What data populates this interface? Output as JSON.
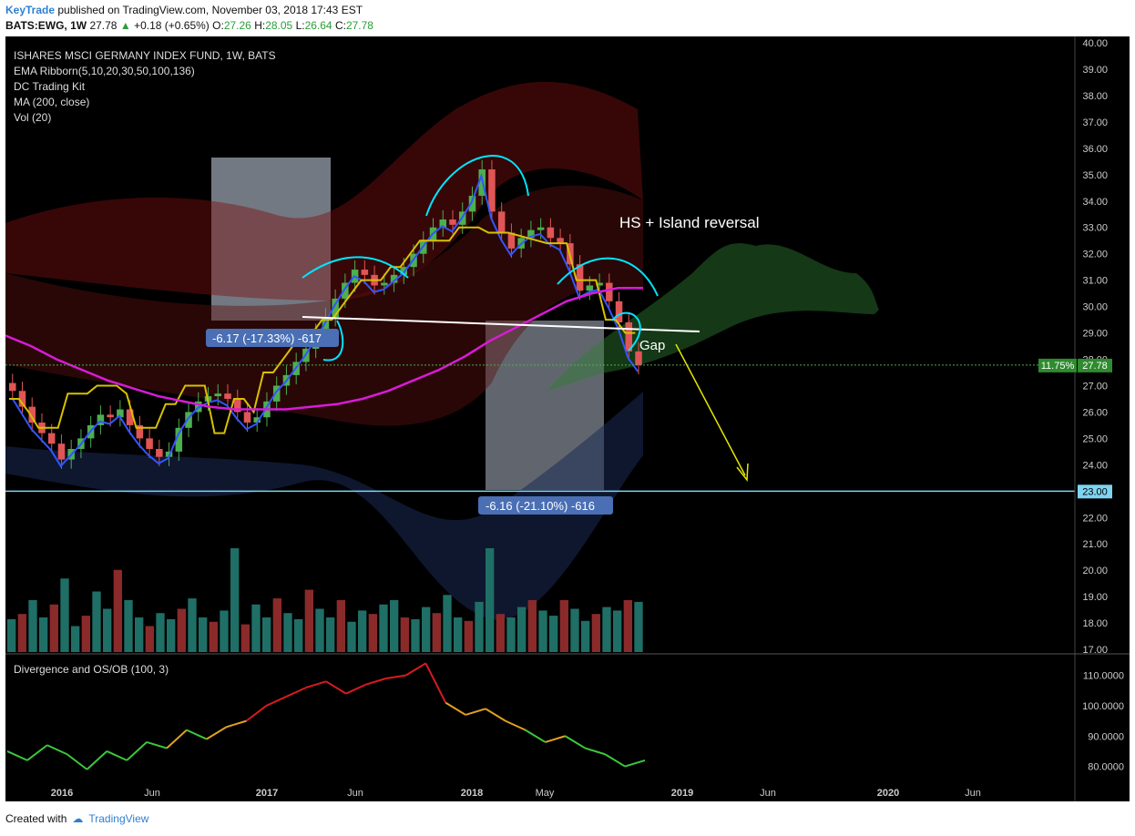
{
  "header": {
    "brand": "KeyTrade",
    "published": "published on TradingView.com, November 03, 2018 17:43 EST",
    "symbol": "BATS:EWG, 1W",
    "last": "27.78",
    "change": "+0.18 (+0.65%)",
    "o_label": "O:",
    "o": "27.26",
    "h_label": "H:",
    "h": "28.05",
    "l_label": "L:",
    "l": "26.64",
    "c_label": "C:",
    "c": "27.78"
  },
  "legend": [
    "ISHARES MSCI GERMANY INDEX FUND, 1W, BATS",
    "EMA Ribborn(5,10,20,30,50,100,136)",
    "DC Trading Kit",
    "MA (200, close)",
    "Vol (20)"
  ],
  "annotations": {
    "title": "HS + Island reversal",
    "gap": "Gap",
    "measure1": "-6.17 (-17.33%) -617",
    "measure2": "-6.16 (-21.10%) -616",
    "price_badge_pct": "11.75%",
    "price_badge": "27.78",
    "support_badge": "23.00"
  },
  "lower_pane": {
    "title": "Divergence and OS/OB (100, 3)"
  },
  "footer": {
    "created": "Created with",
    "brand": "TradingView"
  },
  "colors": {
    "bg": "#000000",
    "up": "#26a69a",
    "down": "#ef5350",
    "ma200": "#d81bd8",
    "cloud": "#2e7d32",
    "cyan": "#00e5ff",
    "support": "#7fd3f0",
    "arrow": "#e6e600"
  },
  "chart_data": {
    "type": "candlestick",
    "yaxis_ticks": [
      "40.00",
      "39.00",
      "38.00",
      "37.00",
      "36.00",
      "35.00",
      "34.00",
      "33.00",
      "32.00",
      "31.00",
      "30.00",
      "29.00",
      "28.00",
      "27.00",
      "26.00",
      "25.00",
      "24.00",
      "23.00",
      "22.00",
      "21.00",
      "20.00",
      "19.00",
      "18.00",
      "17.00"
    ],
    "ylim": [
      17,
      40
    ],
    "xaxis_ticks": [
      "2016",
      "Jun",
      "2017",
      "Jun",
      "2018",
      "May",
      "2019",
      "Jun",
      "2020",
      "Jun"
    ],
    "close_series": [
      26.8,
      26.2,
      25.6,
      25.2,
      24.8,
      24.2,
      24.6,
      25.0,
      25.5,
      25.9,
      25.8,
      26.1,
      25.5,
      25.0,
      24.6,
      24.3,
      24.5,
      25.4,
      26.0,
      26.4,
      26.6,
      26.7,
      26.5,
      26.0,
      25.6,
      25.8,
      26.4,
      27.0,
      27.4,
      27.9,
      28.4,
      29.0,
      29.6,
      30.3,
      30.9,
      31.4,
      31.2,
      30.8,
      30.9,
      31.2,
      31.5,
      32.0,
      32.5,
      33.0,
      33.3,
      33.1,
      33.6,
      34.2,
      35.2,
      33.6,
      32.8,
      32.2,
      32.6,
      32.9,
      33.0,
      32.6,
      32.4,
      31.6,
      30.6,
      30.8,
      30.9,
      30.2,
      29.4,
      28.3,
      27.78
    ],
    "ma200": [
      28.9,
      28.5,
      28.0,
      27.6,
      27.2,
      26.9,
      26.6,
      26.4,
      26.2,
      26.1,
      26.1,
      26.1,
      26.2,
      26.3,
      26.5,
      26.8,
      27.2,
      27.6,
      28.1,
      28.7,
      29.2,
      29.7,
      30.2,
      30.5,
      30.7,
      30.7
    ],
    "support_level": 23.0,
    "measure1": {
      "change": -6.17,
      "percent": -17.33
    },
    "measure2": {
      "change": -6.16,
      "percent": -21.1
    },
    "lower_yaxis_ticks": [
      "110.0000",
      "100.0000",
      "90.0000",
      "80.0000"
    ],
    "oscillator": [
      85,
      82,
      87,
      84,
      79,
      85,
      82,
      88,
      86,
      92,
      89,
      93,
      95,
      100,
      103,
      106,
      108,
      104,
      107,
      109,
      110,
      114,
      101,
      97,
      99,
      95,
      92,
      88,
      90,
      86,
      84,
      80,
      82
    ]
  }
}
